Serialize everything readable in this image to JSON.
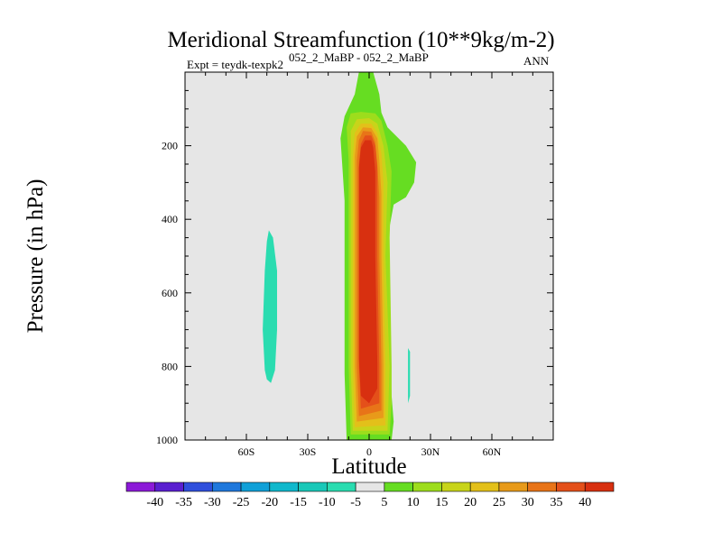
{
  "chart_data": {
    "type": "contour",
    "title": "Meridional Streamfunction (10**9kg/m-2)",
    "subtitle_left": "Expt = teydk-texpk2",
    "subtitle_case": "052_2_MaBP - 052_2_MaBP",
    "subtitle_right": "ANN",
    "xlabel": "Latitude",
    "ylabel": "Pressure (in hPa)",
    "xlim": [
      -90,
      90
    ],
    "ylim": [
      1000,
      0
    ],
    "x_ticks": [
      {
        "value": -60,
        "label": "60S"
      },
      {
        "value": -30,
        "label": "30S"
      },
      {
        "value": 0,
        "label": "0"
      },
      {
        "value": 30,
        "label": "30N"
      },
      {
        "value": 60,
        "label": "60N"
      }
    ],
    "y_ticks": [
      {
        "value": 200,
        "label": "200"
      },
      {
        "value": 400,
        "label": "400"
      },
      {
        "value": 600,
        "label": "600"
      },
      {
        "value": 800,
        "label": "800"
      },
      {
        "value": 1000,
        "label": "1000"
      }
    ],
    "colorbar": {
      "labels": [
        "-40",
        "-35",
        "-30",
        "-25",
        "-20",
        "-15",
        "-10",
        "-5",
        "5",
        "10",
        "15",
        "20",
        "25",
        "30",
        "35",
        "40"
      ],
      "colors": [
        "#8c1ad8",
        "#5a1fd0",
        "#2f4fdc",
        "#1f78dc",
        "#10a0d8",
        "#10b8cc",
        "#19c8b8",
        "#2adcb0",
        "#e6e6e6",
        "#66dd22",
        "#9ddd1c",
        "#c8d41a",
        "#e3c01a",
        "#e89a1a",
        "#e87418",
        "#e4501a",
        "#d83010"
      ]
    },
    "regions": [
      {
        "name": "positive-cell-outer",
        "value": 5,
        "color": "#66dd22",
        "points": [
          [
            -11,
            1000
          ],
          [
            -12,
            820
          ],
          [
            -12,
            600
          ],
          [
            -12,
            350
          ],
          [
            -14,
            180
          ],
          [
            -12,
            120
          ],
          [
            -7,
            60
          ],
          [
            -5,
            0
          ],
          [
            2,
            0
          ],
          [
            5,
            60
          ],
          [
            6,
            110
          ],
          [
            9,
            150
          ],
          [
            18,
            200
          ],
          [
            23,
            245
          ],
          [
            22,
            300
          ],
          [
            18,
            340
          ],
          [
            12,
            360
          ],
          [
            10,
            420
          ],
          [
            9,
            600
          ],
          [
            11,
            880
          ],
          [
            12,
            950
          ],
          [
            11,
            1000
          ]
        ]
      },
      {
        "name": "positive-cell-10",
        "value": 10,
        "color": "#9ddd1c",
        "points": [
          [
            -9,
            985
          ],
          [
            -10,
            800
          ],
          [
            -10,
            500
          ],
          [
            -10,
            240
          ],
          [
            -11,
            150
          ],
          [
            -9,
            112
          ],
          [
            -4,
            108
          ],
          [
            3,
            112
          ],
          [
            6,
            132
          ],
          [
            9,
            200
          ],
          [
            11,
            270
          ],
          [
            10,
            450
          ],
          [
            11,
            800
          ],
          [
            11,
            900
          ],
          [
            10,
            985
          ]
        ]
      },
      {
        "name": "positive-cell-15",
        "value": 15,
        "color": "#c8d41a",
        "points": [
          [
            -8,
            975
          ],
          [
            -9,
            800
          ],
          [
            -9,
            500
          ],
          [
            -9,
            230
          ],
          [
            -9,
            160
          ],
          [
            -6,
            128
          ],
          [
            0,
            125
          ],
          [
            4,
            140
          ],
          [
            7,
            200
          ],
          [
            9,
            300
          ],
          [
            8,
            500
          ],
          [
            10,
            800
          ],
          [
            9,
            975
          ]
        ]
      },
      {
        "name": "positive-cell-20",
        "value": 20,
        "color": "#e3c01a",
        "points": [
          [
            -7,
            965
          ],
          [
            -8,
            800
          ],
          [
            -8,
            500
          ],
          [
            -8,
            230
          ],
          [
            -7,
            165
          ],
          [
            -4,
            140
          ],
          [
            1,
            140
          ],
          [
            4,
            165
          ],
          [
            6,
            220
          ],
          [
            7,
            300
          ],
          [
            7,
            500
          ],
          [
            8,
            800
          ],
          [
            8,
            960
          ]
        ]
      },
      {
        "name": "positive-cell-25",
        "value": 25,
        "color": "#e89a1a",
        "points": [
          [
            -6,
            950
          ],
          [
            -7,
            800
          ],
          [
            -7,
            500
          ],
          [
            -7,
            230
          ],
          [
            -6,
            175
          ],
          [
            -3,
            150
          ],
          [
            1,
            152
          ],
          [
            4,
            180
          ],
          [
            5,
            240
          ],
          [
            6,
            330
          ],
          [
            6,
            500
          ],
          [
            7,
            800
          ],
          [
            7,
            940
          ]
        ]
      },
      {
        "name": "positive-cell-30",
        "value": 30,
        "color": "#e87418",
        "points": [
          [
            -5,
            935
          ],
          [
            -6,
            800
          ],
          [
            -6,
            500
          ],
          [
            -6,
            240
          ],
          [
            -5,
            185
          ],
          [
            -3,
            160
          ],
          [
            1,
            162
          ],
          [
            3,
            190
          ],
          [
            4,
            250
          ],
          [
            5,
            340
          ],
          [
            5,
            500
          ],
          [
            6,
            800
          ],
          [
            6,
            920
          ]
        ]
      },
      {
        "name": "positive-cell-35",
        "value": 35,
        "color": "#e4501a",
        "points": [
          [
            -4,
            915
          ],
          [
            -5,
            800
          ],
          [
            -5,
            500
          ],
          [
            -5,
            250
          ],
          [
            -4,
            195
          ],
          [
            -2,
            172
          ],
          [
            1,
            172
          ],
          [
            3,
            200
          ],
          [
            4,
            260
          ],
          [
            4,
            340
          ],
          [
            4,
            500
          ],
          [
            5,
            800
          ],
          [
            5,
            900
          ]
        ]
      },
      {
        "name": "positive-cell-40",
        "value": 40,
        "color": "#d83010",
        "points": [
          [
            -4,
            880
          ],
          [
            -5,
            780
          ],
          [
            -5,
            500
          ],
          [
            -5,
            260
          ],
          [
            -4,
            205
          ],
          [
            -2,
            185
          ],
          [
            1,
            185
          ],
          [
            2,
            205
          ],
          [
            3,
            270
          ],
          [
            3,
            350
          ],
          [
            3,
            500
          ],
          [
            4,
            790
          ],
          [
            4,
            860
          ],
          [
            0,
            900
          ]
        ]
      },
      {
        "name": "negative-cell-south",
        "value": -5,
        "color": "#2adcb0",
        "points": [
          [
            -51,
            810
          ],
          [
            -52,
            700
          ],
          [
            -51,
            540
          ],
          [
            -50,
            460
          ],
          [
            -49,
            430
          ],
          [
            -47,
            450
          ],
          [
            -45,
            540
          ],
          [
            -45,
            700
          ],
          [
            -46,
            810
          ],
          [
            -48,
            845
          ],
          [
            -50,
            835
          ]
        ]
      },
      {
        "name": "negative-cell-north",
        "value": -5,
        "color": "#2adcb0",
        "points": [
          [
            19,
            750
          ],
          [
            20,
            760
          ],
          [
            20,
            880
          ],
          [
            19,
            900
          ],
          [
            19,
            820
          ]
        ]
      }
    ]
  }
}
